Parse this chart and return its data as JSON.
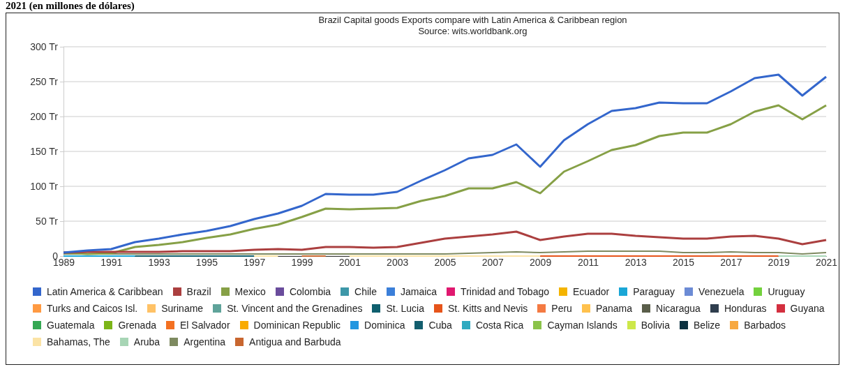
{
  "chart_data": {
    "type": "line",
    "title": "Brazil Capital goods Exports compare with Latin America & Caribbean region",
    "subtitle": "Source: wits.worldbank.org",
    "annotations": [
      "2021 (en millones de dólares)"
    ],
    "x": [
      1989,
      1990,
      1991,
      1992,
      1993,
      1994,
      1995,
      1996,
      1997,
      1998,
      1999,
      2000,
      2001,
      2002,
      2003,
      2004,
      2005,
      2006,
      2007,
      2008,
      2009,
      2010,
      2011,
      2012,
      2013,
      2014,
      2015,
      2016,
      2017,
      2018,
      2019,
      2020,
      2021
    ],
    "xlim": [
      1989,
      2021
    ],
    "xticks": [
      1989,
      1991,
      1993,
      1995,
      1997,
      1999,
      2001,
      2003,
      2005,
      2007,
      2009,
      2011,
      2013,
      2015,
      2017,
      2019,
      2021
    ],
    "ylim": [
      0,
      300
    ],
    "yticks": [
      {
        "value": 0,
        "label": "0"
      },
      {
        "value": 50,
        "label": "50 Tr"
      },
      {
        "value": 100,
        "label": "100 Tr"
      },
      {
        "value": 150,
        "label": "150 Tr"
      },
      {
        "value": 200,
        "label": "200 Tr"
      },
      {
        "value": 250,
        "label": "250 Tr"
      },
      {
        "value": 300,
        "label": "300 Tr"
      }
    ],
    "grid": "y",
    "legend": "bottom",
    "marker": "none",
    "line_style": "solid",
    "series": [
      {
        "name": "Latin America & Caribbean",
        "color": "#3366cc",
        "values": [
          5,
          8,
          10,
          20,
          25,
          31,
          36,
          43,
          53,
          61,
          72,
          89,
          88,
          88,
          92,
          108,
          123,
          140,
          145,
          160,
          128,
          166,
          189,
          208,
          212,
          220,
          219,
          219,
          236,
          255,
          260,
          230,
          257
        ]
      },
      {
        "name": "Brazil",
        "color": "#ab3f3f",
        "values": [
          5,
          6,
          6,
          6,
          6,
          7,
          7,
          7,
          9,
          10,
          9,
          13,
          13,
          12,
          13,
          19,
          25,
          28,
          31,
          35,
          23,
          28,
          32,
          32,
          29,
          27,
          25,
          25,
          28,
          29,
          25,
          17,
          23
        ]
      },
      {
        "name": "Mexico",
        "color": "#86a046",
        "values": [
          5,
          3,
          4,
          13,
          16,
          20,
          26,
          31,
          39,
          45,
          56,
          68,
          67,
          68,
          69,
          79,
          86,
          97,
          97,
          106,
          90,
          121,
          136,
          152,
          159,
          172,
          177,
          177,
          189,
          207,
          216,
          196,
          216
        ]
      },
      {
        "name": "Colombia",
        "color": "#6a4c9c",
        "values": [
          null,
          null,
          null,
          null,
          null,
          null,
          null,
          null,
          null,
          null,
          null,
          null,
          null,
          null,
          null,
          null,
          null,
          null,
          null,
          null,
          null,
          null,
          null,
          null,
          null,
          null,
          null,
          null,
          null,
          null,
          null,
          null,
          null
        ]
      },
      {
        "name": "Chile",
        "color": "#3d97a8",
        "values": [
          null,
          null,
          null,
          null,
          null,
          null,
          null,
          null,
          null,
          null,
          null,
          null,
          null,
          null,
          null,
          null,
          null,
          null,
          null,
          null,
          null,
          null,
          null,
          null,
          null,
          null,
          null,
          null,
          null,
          null,
          null,
          null,
          null
        ]
      },
      {
        "name": "Jamaica",
        "color": "#3b7fd9",
        "values": [
          null,
          null,
          null,
          null,
          null,
          null,
          null,
          null,
          null,
          null,
          null,
          null,
          null,
          null,
          null,
          null,
          null,
          null,
          null,
          null,
          null,
          null,
          null,
          null,
          null,
          null,
          null,
          null,
          null,
          null,
          null,
          null,
          null
        ]
      },
      {
        "name": "Trinidad and Tobago",
        "color": "#e0186f",
        "values": [
          null,
          null,
          null,
          null,
          null,
          null,
          null,
          null,
          null,
          null,
          null,
          null,
          null,
          null,
          null,
          null,
          null,
          null,
          null,
          null,
          null,
          null,
          null,
          null,
          null,
          null,
          null,
          null,
          null,
          null,
          null,
          null,
          null
        ]
      },
      {
        "name": "Ecuador",
        "color": "#f4b400",
        "values": [
          null,
          null,
          null,
          null,
          null,
          null,
          null,
          null,
          null,
          null,
          null,
          null,
          null,
          null,
          null,
          null,
          null,
          null,
          null,
          null,
          null,
          null,
          null,
          null,
          null,
          null,
          null,
          null,
          null,
          null,
          null,
          null,
          null
        ]
      },
      {
        "name": "Paraguay",
        "color": "#1aa6d6",
        "values": [
          0,
          0,
          0,
          0,
          null,
          null,
          null,
          null,
          null,
          null,
          null,
          null,
          null,
          null,
          null,
          null,
          null,
          null,
          null,
          null,
          null,
          null,
          null,
          null,
          null,
          null,
          null,
          null,
          null,
          null,
          null,
          null,
          null
        ]
      },
      {
        "name": "Venezuela",
        "color": "#6c8bd5",
        "values": [
          null,
          null,
          null,
          null,
          null,
          null,
          null,
          null,
          null,
          null,
          null,
          null,
          null,
          null,
          null,
          null,
          null,
          null,
          null,
          null,
          null,
          null,
          null,
          null,
          null,
          null,
          null,
          null,
          null,
          null,
          null,
          null,
          null
        ]
      },
      {
        "name": "Uruguay",
        "color": "#73d13d",
        "values": [
          null,
          null,
          null,
          null,
          null,
          null,
          null,
          null,
          null,
          null,
          null,
          null,
          null,
          null,
          null,
          null,
          null,
          null,
          null,
          null,
          null,
          null,
          null,
          null,
          null,
          null,
          null,
          null,
          null,
          null,
          null,
          null,
          null
        ]
      },
      {
        "name": "Turks and Caicos Isl.",
        "color": "#ff9a42",
        "values": [
          null,
          null,
          null,
          null,
          null,
          null,
          null,
          null,
          null,
          null,
          null,
          null,
          null,
          null,
          null,
          null,
          null,
          null,
          null,
          null,
          null,
          null,
          null,
          null,
          null,
          null,
          null,
          null,
          null,
          null,
          null,
          null,
          null
        ]
      },
      {
        "name": "Suriname",
        "color": "#ffc266",
        "values": [
          null,
          null,
          null,
          null,
          null,
          null,
          null,
          null,
          null,
          null,
          null,
          null,
          null,
          null,
          null,
          null,
          null,
          null,
          null,
          null,
          null,
          null,
          null,
          null,
          null,
          null,
          null,
          null,
          null,
          null,
          null,
          null,
          null
        ]
      },
      {
        "name": "St. Vincent and the Grenadines",
        "color": "#5fa39a",
        "values": [
          null,
          null,
          null,
          null,
          null,
          null,
          null,
          null,
          null,
          null,
          null,
          null,
          null,
          null,
          null,
          null,
          null,
          null,
          null,
          null,
          null,
          null,
          null,
          null,
          null,
          null,
          null,
          null,
          null,
          null,
          null,
          null,
          null
        ]
      },
      {
        "name": "St. Lucia",
        "color": "#0f5f6e",
        "values": [
          null,
          null,
          null,
          0,
          0,
          0,
          0,
          0,
          0,
          null,
          null,
          null,
          null,
          null,
          null,
          null,
          null,
          null,
          null,
          null,
          null,
          null,
          null,
          null,
          null,
          null,
          null,
          null,
          null,
          null,
          null,
          null,
          null
        ]
      },
      {
        "name": "St. Kitts and Nevis",
        "color": "#e6541a",
        "values": [
          null,
          null,
          null,
          null,
          null,
          null,
          null,
          null,
          null,
          null,
          null,
          null,
          null,
          null,
          null,
          null,
          null,
          null,
          null,
          null,
          0,
          0,
          0,
          0,
          0,
          0,
          0,
          0,
          0,
          0,
          0,
          null,
          null
        ]
      },
      {
        "name": "Peru",
        "color": "#f47a42",
        "values": [
          null,
          null,
          null,
          null,
          null,
          null,
          null,
          null,
          null,
          null,
          null,
          null,
          null,
          null,
          null,
          null,
          null,
          null,
          null,
          null,
          null,
          null,
          null,
          null,
          null,
          null,
          null,
          null,
          null,
          null,
          null,
          null,
          null
        ]
      },
      {
        "name": "Panama",
        "color": "#ffc14d",
        "values": [
          null,
          null,
          null,
          null,
          null,
          null,
          null,
          null,
          null,
          null,
          null,
          null,
          null,
          null,
          null,
          null,
          null,
          null,
          null,
          null,
          null,
          null,
          null,
          null,
          null,
          null,
          null,
          null,
          null,
          null,
          null,
          null,
          null
        ]
      },
      {
        "name": "Nicaragua",
        "color": "#5a5e4a",
        "values": [
          null,
          null,
          null,
          null,
          null,
          null,
          null,
          null,
          null,
          null,
          null,
          null,
          null,
          null,
          null,
          null,
          null,
          null,
          null,
          null,
          null,
          null,
          null,
          null,
          null,
          null,
          null,
          null,
          null,
          null,
          null,
          null,
          null
        ]
      },
      {
        "name": "Honduras",
        "color": "#2f3e4e",
        "values": [
          null,
          null,
          null,
          null,
          null,
          null,
          null,
          null,
          null,
          null,
          null,
          null,
          null,
          null,
          null,
          null,
          null,
          null,
          null,
          null,
          null,
          null,
          null,
          null,
          null,
          null,
          null,
          null,
          null,
          null,
          null,
          null,
          null
        ]
      },
      {
        "name": "Guyana",
        "color": "#d32f3f",
        "values": [
          null,
          null,
          null,
          null,
          null,
          null,
          null,
          null,
          null,
          null,
          null,
          null,
          null,
          null,
          null,
          null,
          null,
          null,
          null,
          null,
          null,
          null,
          null,
          null,
          null,
          null,
          null,
          null,
          null,
          null,
          null,
          null,
          null
        ]
      },
      {
        "name": "Guatemala",
        "color": "#34a853",
        "values": [
          null,
          null,
          null,
          null,
          null,
          null,
          null,
          null,
          null,
          null,
          null,
          null,
          null,
          null,
          null,
          null,
          null,
          null,
          null,
          null,
          null,
          null,
          null,
          null,
          null,
          null,
          null,
          null,
          null,
          null,
          null,
          null,
          null
        ]
      },
      {
        "name": "Grenada",
        "color": "#7cb518",
        "values": [
          null,
          null,
          null,
          null,
          null,
          null,
          null,
          null,
          null,
          null,
          null,
          null,
          null,
          null,
          null,
          null,
          null,
          null,
          null,
          null,
          null,
          null,
          null,
          null,
          null,
          null,
          null,
          null,
          null,
          null,
          null,
          null,
          null
        ]
      },
      {
        "name": "El Salvador",
        "color": "#f37021",
        "values": [
          null,
          null,
          null,
          null,
          null,
          null,
          null,
          null,
          null,
          null,
          null,
          null,
          null,
          null,
          null,
          null,
          null,
          null,
          null,
          null,
          null,
          null,
          null,
          null,
          null,
          null,
          null,
          null,
          null,
          null,
          null,
          null,
          null
        ]
      },
      {
        "name": "Dominican Republic",
        "color": "#f9ab00",
        "values": [
          null,
          null,
          null,
          null,
          null,
          null,
          null,
          null,
          null,
          null,
          null,
          null,
          null,
          null,
          null,
          null,
          null,
          null,
          null,
          null,
          null,
          null,
          null,
          null,
          null,
          null,
          null,
          null,
          null,
          null,
          null,
          null,
          null
        ]
      },
      {
        "name": "Dominica",
        "color": "#2196e0",
        "values": [
          null,
          null,
          null,
          null,
          null,
          null,
          null,
          null,
          null,
          null,
          null,
          null,
          null,
          null,
          null,
          null,
          null,
          null,
          null,
          null,
          null,
          null,
          null,
          null,
          null,
          null,
          null,
          null,
          null,
          null,
          null,
          null,
          null
        ]
      },
      {
        "name": "Cuba",
        "color": "#135e6e",
        "values": [
          null,
          null,
          null,
          null,
          null,
          null,
          null,
          null,
          null,
          null,
          null,
          null,
          null,
          null,
          null,
          null,
          null,
          null,
          null,
          null,
          null,
          null,
          null,
          null,
          null,
          null,
          null,
          null,
          null,
          null,
          null,
          null,
          null
        ]
      },
      {
        "name": "Costa Rica",
        "color": "#2eaac0",
        "values": [
          null,
          null,
          null,
          null,
          null,
          null,
          null,
          null,
          null,
          null,
          null,
          null,
          null,
          null,
          null,
          null,
          null,
          null,
          null,
          null,
          null,
          null,
          null,
          null,
          null,
          null,
          null,
          null,
          null,
          null,
          null,
          null,
          null
        ]
      },
      {
        "name": "Cayman Islands",
        "color": "#8bc34a",
        "values": [
          null,
          null,
          null,
          null,
          null,
          null,
          null,
          null,
          null,
          null,
          null,
          null,
          null,
          null,
          null,
          null,
          null,
          null,
          null,
          null,
          null,
          null,
          null,
          null,
          null,
          null,
          null,
          null,
          null,
          null,
          null,
          null,
          null
        ]
      },
      {
        "name": "Bolivia",
        "color": "#cde84a",
        "values": [
          null,
          null,
          null,
          null,
          null,
          null,
          null,
          null,
          null,
          null,
          null,
          null,
          null,
          null,
          null,
          null,
          null,
          null,
          null,
          null,
          null,
          null,
          null,
          null,
          null,
          null,
          null,
          null,
          null,
          null,
          null,
          null,
          null
        ]
      },
      {
        "name": "Belize",
        "color": "#0b3140",
        "values": [
          null,
          null,
          null,
          null,
          null,
          null,
          null,
          null,
          null,
          null,
          null,
          null,
          null,
          null,
          null,
          null,
          null,
          null,
          null,
          null,
          null,
          null,
          null,
          null,
          null,
          null,
          null,
          null,
          null,
          null,
          null,
          null,
          null
        ]
      },
      {
        "name": "Barbados",
        "color": "#f7a840",
        "values": [
          null,
          null,
          null,
          null,
          null,
          null,
          null,
          null,
          null,
          null,
          null,
          null,
          null,
          null,
          null,
          null,
          null,
          null,
          null,
          null,
          null,
          null,
          null,
          null,
          null,
          null,
          null,
          null,
          null,
          null,
          null,
          null,
          null
        ]
      },
      {
        "name": "Bahamas, The",
        "color": "#fbe3a5",
        "values": [
          null,
          null,
          null,
          null,
          null,
          null,
          null,
          null,
          0,
          0,
          null,
          null,
          0,
          0,
          0,
          0,
          0,
          0,
          0,
          0,
          0,
          null,
          null,
          null,
          null,
          null,
          null,
          null,
          null,
          null,
          null,
          null,
          null
        ]
      },
      {
        "name": "Aruba",
        "color": "#a7d5b5",
        "values": [
          null,
          null,
          null,
          null,
          null,
          null,
          null,
          null,
          null,
          null,
          null,
          null,
          null,
          null,
          null,
          null,
          null,
          null,
          null,
          null,
          null,
          null,
          null,
          null,
          null,
          null,
          null,
          null,
          null,
          null,
          0,
          0,
          0
        ]
      },
      {
        "name": "Argentina",
        "color": "#7e8a60",
        "values": [
          3,
          3,
          3,
          3,
          3,
          3,
          3,
          3,
          3,
          3,
          3,
          3,
          3,
          3,
          3,
          3,
          3,
          4,
          5,
          6,
          5,
          6,
          7,
          7,
          7,
          7,
          5,
          5,
          6,
          5,
          5,
          3,
          5
        ]
      },
      {
        "name": "Antigua and Barbuda",
        "color": "#c8662f",
        "values": [
          null,
          null,
          null,
          null,
          null,
          null,
          null,
          null,
          null,
          null,
          0,
          0,
          null,
          null,
          null,
          null,
          null,
          null,
          null,
          null,
          null,
          null,
          null,
          null,
          null,
          null,
          null,
          null,
          null,
          null,
          null,
          null,
          null
        ]
      }
    ]
  }
}
